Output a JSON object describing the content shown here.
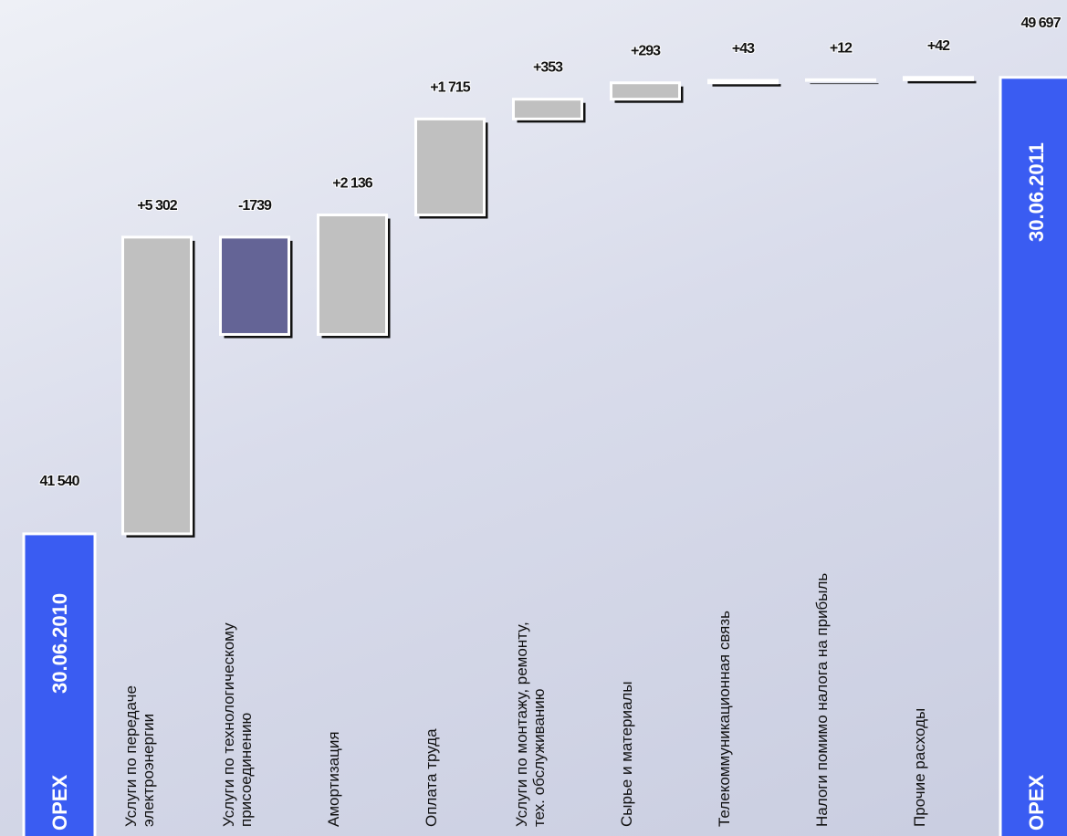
{
  "chart_data": {
    "type": "waterfall",
    "start": {
      "name": "OPEX",
      "date": "30.06.2010",
      "value": 41540,
      "value_label": "41 540"
    },
    "end": {
      "name": "OPEX",
      "date": "30.06.2011",
      "value": 49697,
      "value_label": "49 697"
    },
    "categories": [
      "Услуги  по передаче\nэлектроэнергии",
      "Услуги по технологическому\nприсоединению",
      "Амортизация",
      "Оплата труда",
      "Услуги по монтажу, ремонту,\nтех. обслуживанию",
      "Сырье и материалы",
      "Телекоммуникационная связь",
      "Налоги помимо налога на прибыль",
      "Прочие расходы"
    ],
    "values": [
      5302,
      -1739,
      2136,
      1715,
      353,
      293,
      43,
      12,
      42
    ],
    "value_labels": [
      "+5 302",
      "-1739",
      "+2 136",
      "+1 715",
      "+353",
      "+293",
      "+43",
      "+12",
      "+42"
    ],
    "colors": {
      "increase": "#c0c0c0",
      "decrease": "#646496",
      "total": "#3a5cf2"
    },
    "ylim": [
      36140,
      51080
    ]
  }
}
